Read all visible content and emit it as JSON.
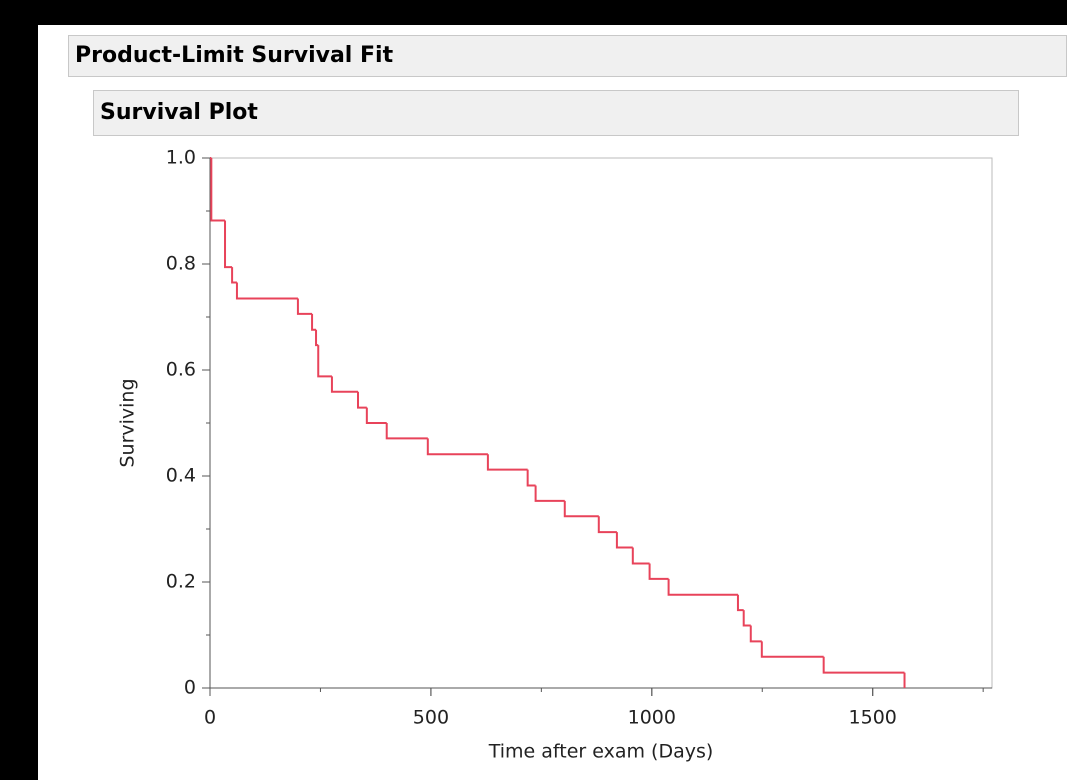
{
  "panel_title": "Product-Limit Survival Fit",
  "plot_title": "Survival Plot",
  "chart_data": {
    "type": "step",
    "xlabel": "Time after exam (Days)",
    "ylabel": "Surviving",
    "x": [
      0,
      3,
      34,
      50,
      61,
      199,
      231,
      240,
      245,
      276,
      335,
      355,
      400,
      493,
      629,
      719,
      737,
      803,
      880,
      921,
      957,
      995,
      1038,
      1195,
      1208,
      1224,
      1249,
      1389,
      1572
    ],
    "series": [
      {
        "color": "#e8435a",
        "values": [
          1,
          0.882,
          0.794,
          0.765,
          0.735,
          0.706,
          0.676,
          0.647,
          0.588,
          0.559,
          0.529,
          0.5,
          0.471,
          0.441,
          0.412,
          0.382,
          0.353,
          0.324,
          0.294,
          0.265,
          0.235,
          0.206,
          0.176,
          0.147,
          0.118,
          0.088,
          0.059,
          0.029,
          0
        ]
      }
    ],
    "xlim": [
      0,
      1770
    ],
    "ylim": [
      0,
      1
    ],
    "xticks": [
      0,
      500,
      1000,
      1500
    ],
    "yticks": [
      0,
      0.2,
      0.4,
      0.6,
      0.8,
      {
        "value": 1,
        "label": "1.0"
      }
    ]
  }
}
